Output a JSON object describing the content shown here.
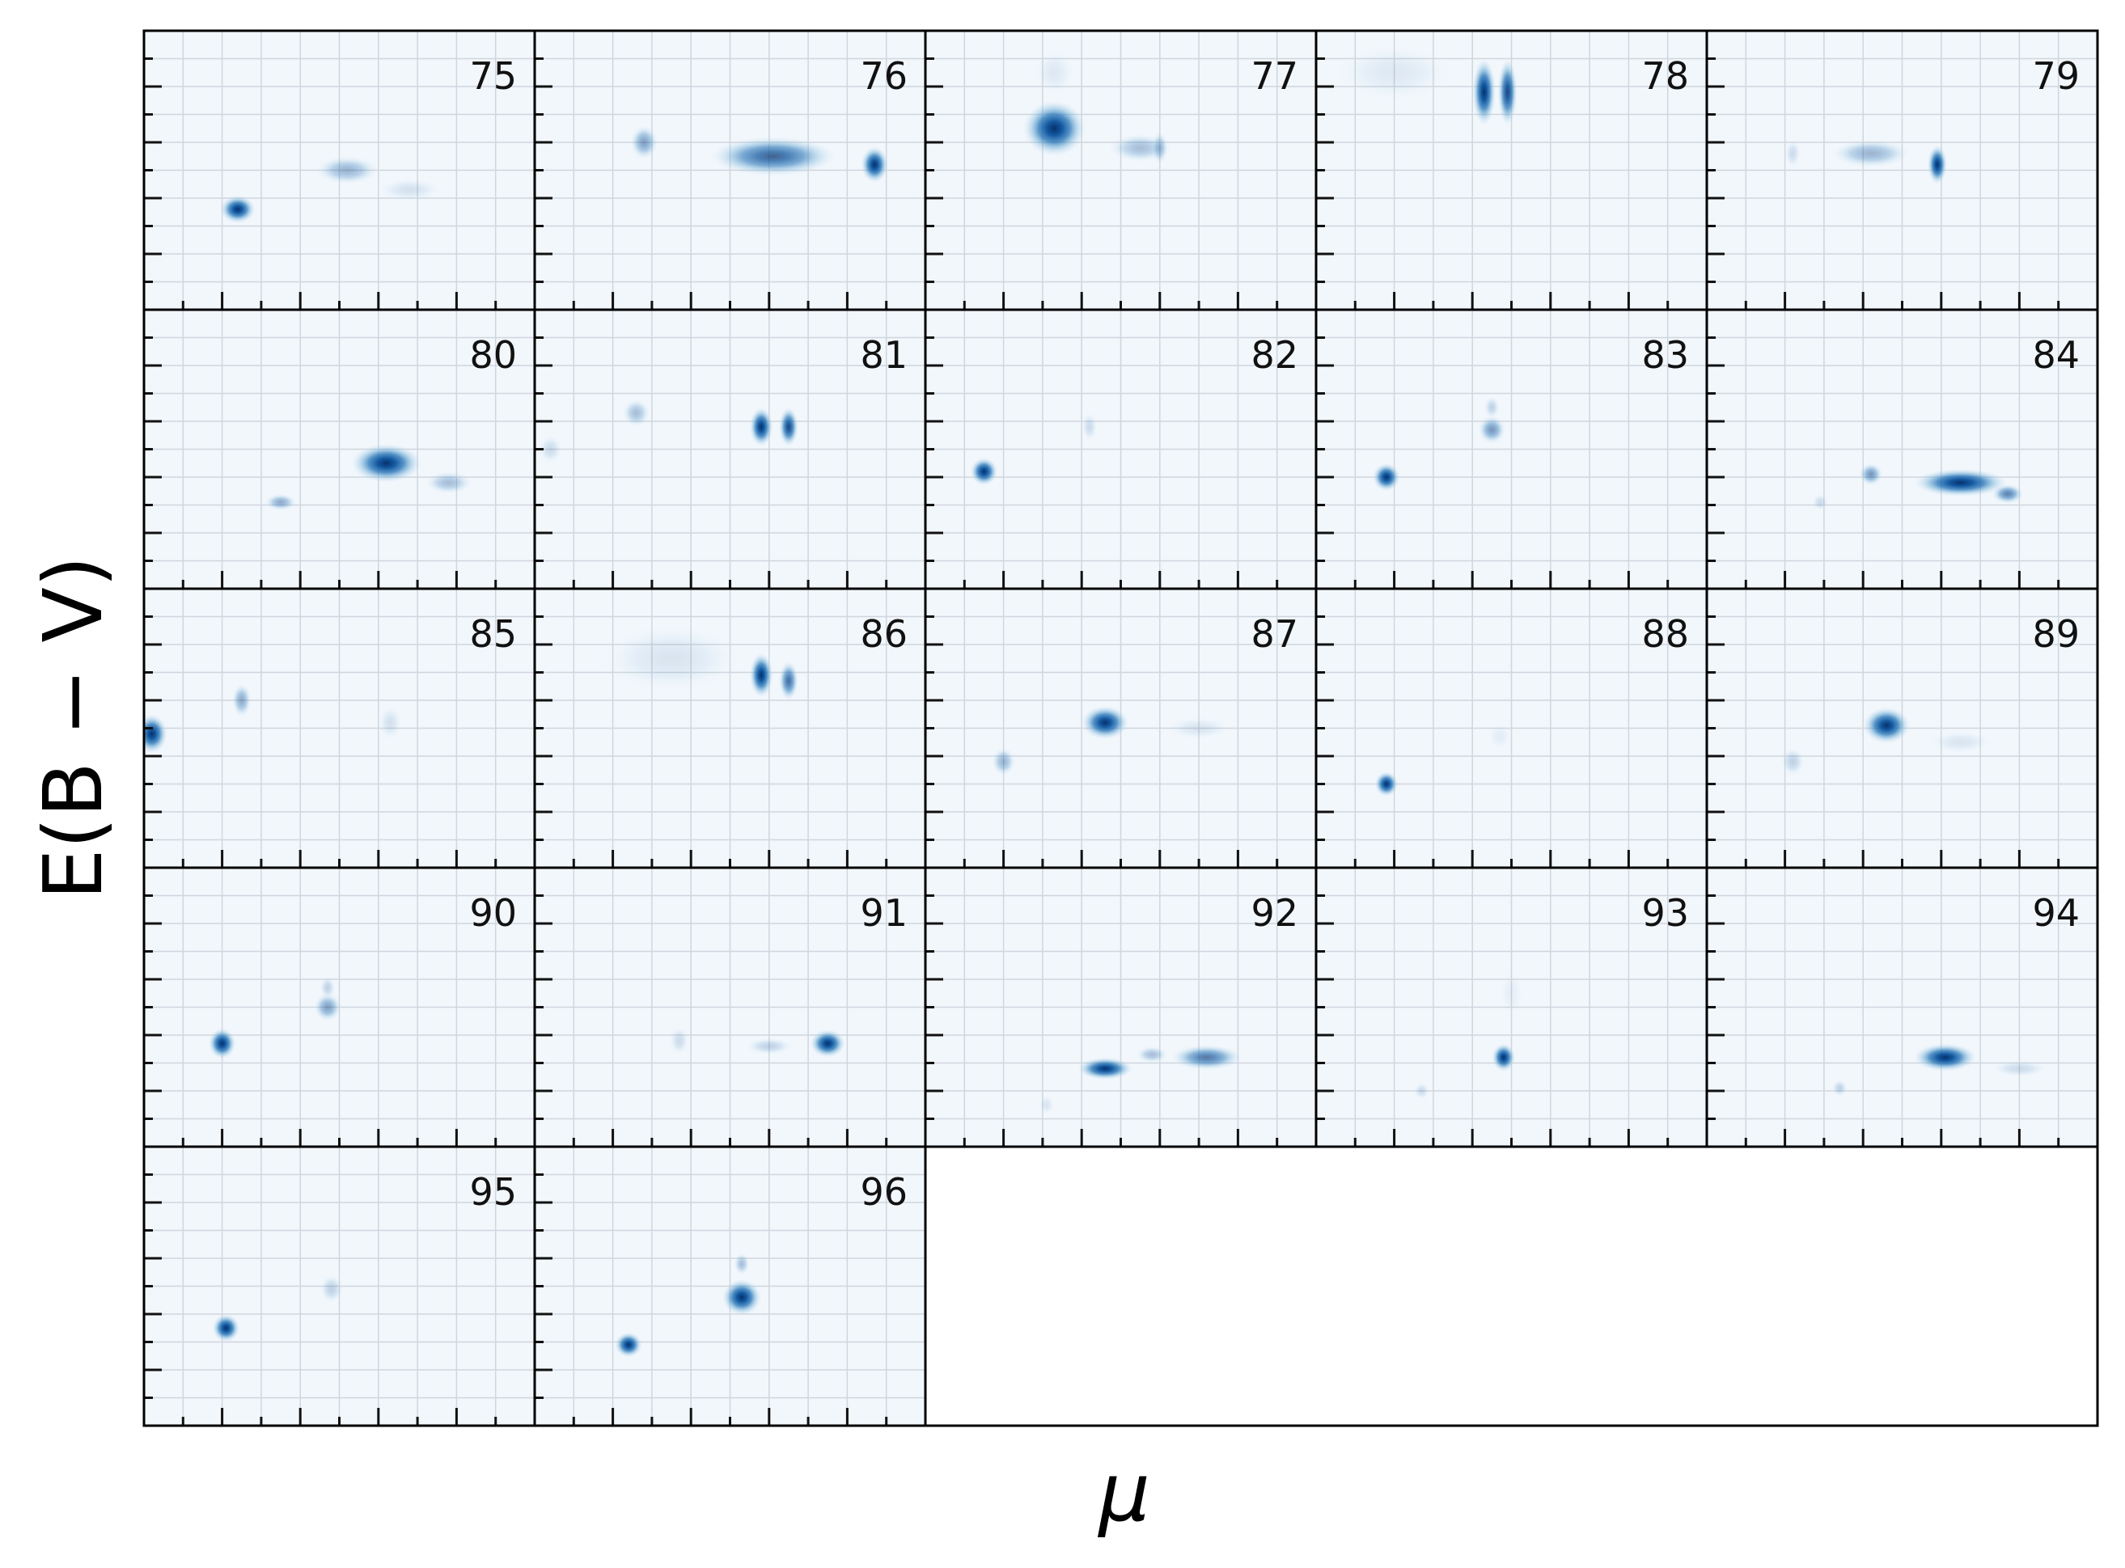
{
  "chart_data": {
    "type": "heatmap",
    "xlabel": "μ",
    "ylabel": "E(B − V)",
    "colormap": "Blues",
    "grid": true,
    "layout": {
      "rows": 5,
      "cols": 5
    },
    "panels": [
      {
        "label": "75",
        "blobs": [
          {
            "x": 0.24,
            "y": 0.36,
            "w": 0.045,
            "h": 0.05,
            "a": 1.0
          },
          {
            "x": 0.52,
            "y": 0.5,
            "w": 0.08,
            "h": 0.05,
            "a": 0.35
          },
          {
            "x": 0.68,
            "y": 0.43,
            "w": 0.08,
            "h": 0.04,
            "a": 0.12
          }
        ]
      },
      {
        "label": "76",
        "blobs": [
          {
            "x": 0.61,
            "y": 0.55,
            "w": 0.16,
            "h": 0.07,
            "a": 0.75
          },
          {
            "x": 0.28,
            "y": 0.6,
            "w": 0.035,
            "h": 0.06,
            "a": 0.45
          },
          {
            "x": 0.87,
            "y": 0.52,
            "w": 0.035,
            "h": 0.065,
            "a": 1.0
          }
        ]
      },
      {
        "label": "77",
        "blobs": [
          {
            "x": 0.33,
            "y": 0.65,
            "w": 0.08,
            "h": 0.1,
            "a": 1.0
          },
          {
            "x": 0.55,
            "y": 0.58,
            "w": 0.08,
            "h": 0.05,
            "a": 0.3
          },
          {
            "x": 0.6,
            "y": 0.58,
            "w": 0.02,
            "h": 0.06,
            "a": 0.3
          },
          {
            "x": 0.33,
            "y": 0.85,
            "w": 0.05,
            "h": 0.08,
            "a": 0.08
          }
        ]
      },
      {
        "label": "78",
        "blobs": [
          {
            "x": 0.43,
            "y": 0.78,
            "w": 0.03,
            "h": 0.12,
            "a": 1.0
          },
          {
            "x": 0.49,
            "y": 0.78,
            "w": 0.025,
            "h": 0.12,
            "a": 0.9
          },
          {
            "x": 0.2,
            "y": 0.85,
            "w": 0.15,
            "h": 0.1,
            "a": 0.08
          }
        ]
      },
      {
        "label": "79",
        "blobs": [
          {
            "x": 0.59,
            "y": 0.52,
            "w": 0.025,
            "h": 0.07,
            "a": 1.0
          },
          {
            "x": 0.42,
            "y": 0.56,
            "w": 0.1,
            "h": 0.05,
            "a": 0.35
          },
          {
            "x": 0.22,
            "y": 0.56,
            "w": 0.02,
            "h": 0.05,
            "a": 0.15
          }
        ]
      },
      {
        "label": "80",
        "blobs": [
          {
            "x": 0.62,
            "y": 0.45,
            "w": 0.09,
            "h": 0.07,
            "a": 1.0
          },
          {
            "x": 0.35,
            "y": 0.31,
            "w": 0.04,
            "h": 0.03,
            "a": 0.4
          },
          {
            "x": 0.78,
            "y": 0.38,
            "w": 0.06,
            "h": 0.04,
            "a": 0.3
          }
        ]
      },
      {
        "label": "81",
        "blobs": [
          {
            "x": 0.58,
            "y": 0.58,
            "w": 0.03,
            "h": 0.07,
            "a": 1.0
          },
          {
            "x": 0.65,
            "y": 0.58,
            "w": 0.025,
            "h": 0.07,
            "a": 0.9
          },
          {
            "x": 0.26,
            "y": 0.63,
            "w": 0.035,
            "h": 0.05,
            "a": 0.3
          },
          {
            "x": 0.04,
            "y": 0.5,
            "w": 0.03,
            "h": 0.05,
            "a": 0.15
          }
        ]
      },
      {
        "label": "82",
        "blobs": [
          {
            "x": 0.15,
            "y": 0.42,
            "w": 0.035,
            "h": 0.05,
            "a": 1.0
          },
          {
            "x": 0.42,
            "y": 0.58,
            "w": 0.02,
            "h": 0.05,
            "a": 0.15
          }
        ]
      },
      {
        "label": "83",
        "blobs": [
          {
            "x": 0.18,
            "y": 0.4,
            "w": 0.035,
            "h": 0.05,
            "a": 1.0
          },
          {
            "x": 0.45,
            "y": 0.57,
            "w": 0.035,
            "h": 0.05,
            "a": 0.5
          },
          {
            "x": 0.45,
            "y": 0.65,
            "w": 0.02,
            "h": 0.04,
            "a": 0.2
          }
        ]
      },
      {
        "label": "84",
        "blobs": [
          {
            "x": 0.65,
            "y": 0.38,
            "w": 0.12,
            "h": 0.05,
            "a": 1.0
          },
          {
            "x": 0.42,
            "y": 0.41,
            "w": 0.03,
            "h": 0.04,
            "a": 0.5
          },
          {
            "x": 0.77,
            "y": 0.34,
            "w": 0.04,
            "h": 0.035,
            "a": 0.6
          },
          {
            "x": 0.29,
            "y": 0.31,
            "w": 0.02,
            "h": 0.03,
            "a": 0.15
          }
        ]
      },
      {
        "label": "85",
        "blobs": [
          {
            "x": 0.02,
            "y": 0.48,
            "w": 0.04,
            "h": 0.07,
            "a": 1.0
          },
          {
            "x": 0.25,
            "y": 0.6,
            "w": 0.025,
            "h": 0.06,
            "a": 0.4
          },
          {
            "x": 0.63,
            "y": 0.52,
            "w": 0.03,
            "h": 0.06,
            "a": 0.12
          }
        ]
      },
      {
        "label": "86",
        "blobs": [
          {
            "x": 0.58,
            "y": 0.69,
            "w": 0.03,
            "h": 0.08,
            "a": 1.0
          },
          {
            "x": 0.65,
            "y": 0.67,
            "w": 0.025,
            "h": 0.07,
            "a": 0.7
          },
          {
            "x": 0.35,
            "y": 0.75,
            "w": 0.18,
            "h": 0.12,
            "a": 0.1
          }
        ]
      },
      {
        "label": "87",
        "blobs": [
          {
            "x": 0.46,
            "y": 0.52,
            "w": 0.06,
            "h": 0.06,
            "a": 1.0
          },
          {
            "x": 0.2,
            "y": 0.38,
            "w": 0.03,
            "h": 0.05,
            "a": 0.35
          },
          {
            "x": 0.7,
            "y": 0.5,
            "w": 0.08,
            "h": 0.04,
            "a": 0.1
          }
        ]
      },
      {
        "label": "88",
        "blobs": [
          {
            "x": 0.18,
            "y": 0.3,
            "w": 0.03,
            "h": 0.045,
            "a": 1.0
          },
          {
            "x": 0.47,
            "y": 0.47,
            "w": 0.03,
            "h": 0.05,
            "a": 0.06
          }
        ]
      },
      {
        "label": "89",
        "blobs": [
          {
            "x": 0.46,
            "y": 0.51,
            "w": 0.06,
            "h": 0.065,
            "a": 1.0
          },
          {
            "x": 0.22,
            "y": 0.38,
            "w": 0.03,
            "h": 0.05,
            "a": 0.2
          },
          {
            "x": 0.65,
            "y": 0.45,
            "w": 0.08,
            "h": 0.04,
            "a": 0.1
          }
        ]
      },
      {
        "label": "90",
        "blobs": [
          {
            "x": 0.2,
            "y": 0.37,
            "w": 0.035,
            "h": 0.055,
            "a": 1.0
          },
          {
            "x": 0.47,
            "y": 0.5,
            "w": 0.035,
            "h": 0.05,
            "a": 0.45
          },
          {
            "x": 0.47,
            "y": 0.57,
            "w": 0.02,
            "h": 0.04,
            "a": 0.2
          }
        ]
      },
      {
        "label": "91",
        "blobs": [
          {
            "x": 0.75,
            "y": 0.37,
            "w": 0.045,
            "h": 0.05,
            "a": 1.0
          },
          {
            "x": 0.6,
            "y": 0.36,
            "w": 0.06,
            "h": 0.03,
            "a": 0.2
          },
          {
            "x": 0.37,
            "y": 0.38,
            "w": 0.025,
            "h": 0.05,
            "a": 0.15
          }
        ]
      },
      {
        "label": "92",
        "blobs": [
          {
            "x": 0.46,
            "y": 0.28,
            "w": 0.07,
            "h": 0.04,
            "a": 1.0
          },
          {
            "x": 0.72,
            "y": 0.32,
            "w": 0.09,
            "h": 0.045,
            "a": 0.65
          },
          {
            "x": 0.58,
            "y": 0.33,
            "w": 0.04,
            "h": 0.03,
            "a": 0.3
          },
          {
            "x": 0.31,
            "y": 0.15,
            "w": 0.02,
            "h": 0.035,
            "a": 0.1
          }
        ]
      },
      {
        "label": "93",
        "blobs": [
          {
            "x": 0.48,
            "y": 0.32,
            "w": 0.03,
            "h": 0.05,
            "a": 1.0
          },
          {
            "x": 0.27,
            "y": 0.2,
            "w": 0.02,
            "h": 0.03,
            "a": 0.15
          },
          {
            "x": 0.5,
            "y": 0.55,
            "w": 0.03,
            "h": 0.08,
            "a": 0.05
          }
        ]
      },
      {
        "label": "94",
        "blobs": [
          {
            "x": 0.61,
            "y": 0.32,
            "w": 0.08,
            "h": 0.05,
            "a": 1.0
          },
          {
            "x": 0.34,
            "y": 0.21,
            "w": 0.02,
            "h": 0.03,
            "a": 0.2
          },
          {
            "x": 0.8,
            "y": 0.28,
            "w": 0.07,
            "h": 0.03,
            "a": 0.15
          }
        ]
      },
      {
        "label": "95",
        "blobs": [
          {
            "x": 0.21,
            "y": 0.35,
            "w": 0.035,
            "h": 0.05,
            "a": 1.0
          },
          {
            "x": 0.48,
            "y": 0.49,
            "w": 0.03,
            "h": 0.05,
            "a": 0.2
          }
        ]
      },
      {
        "label": "96",
        "blobs": [
          {
            "x": 0.24,
            "y": 0.29,
            "w": 0.035,
            "h": 0.045,
            "a": 1.0
          },
          {
            "x": 0.53,
            "y": 0.46,
            "w": 0.05,
            "h": 0.065,
            "a": 1.0
          },
          {
            "x": 0.53,
            "y": 0.58,
            "w": 0.02,
            "h": 0.04,
            "a": 0.3
          }
        ]
      }
    ]
  }
}
